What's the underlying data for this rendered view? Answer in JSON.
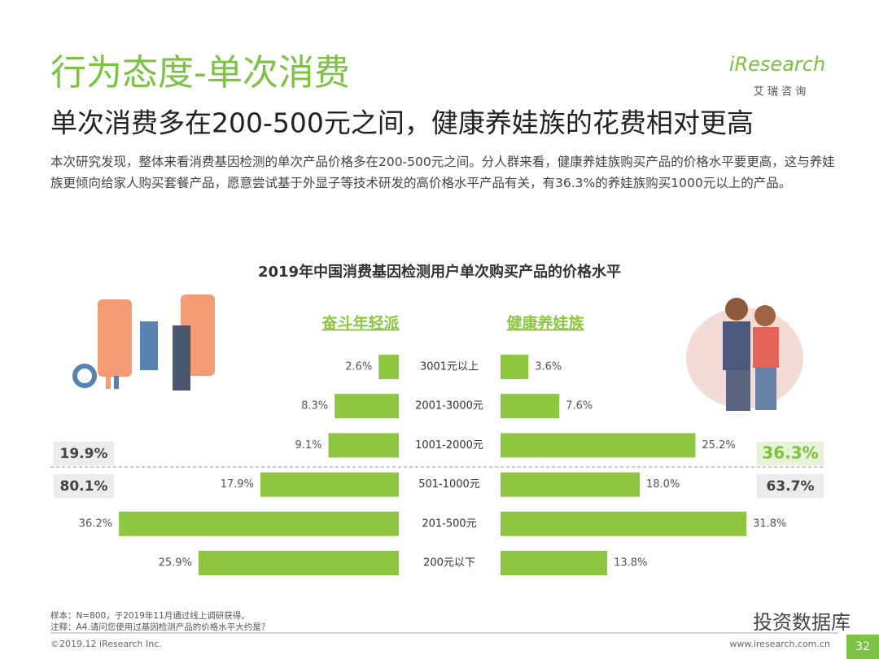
{
  "header": {
    "title": "行为态度-单次消费",
    "subtitle": "单次消费多在200-500元之间，健康养娃族的花费相对更高",
    "paragraph": "本次研究发现，整体来看消费基因检测的单次产品价格多在200-500元之间。分人群来看，健康养娃族购买产品的价格水平要更高，这与养娃族更倾向给家人购买套餐产品，愿意尝试基于外显子等技术研发的高价格水平产品有关，有36.3%的养娃族购买1000元以上的产品。"
  },
  "logo": {
    "name": "iResearch",
    "cn": "艾 瑞 咨 询"
  },
  "chart_data": {
    "type": "butterfly",
    "title": "2019年中国消费基因检测用户单次购买产品的价格水平",
    "categories": [
      "3001元以上",
      "2001-3000元",
      "1001-2000元",
      "501-1000元",
      "201-500元",
      "200元以下"
    ],
    "series": [
      {
        "name": "奋斗年轻派",
        "color": "#8dc63f",
        "values": [
          2.6,
          8.3,
          9.1,
          17.9,
          36.2,
          25.9
        ],
        "value_labels": [
          "2.6%",
          "8.3%",
          "9.1%",
          "17.9%",
          "36.2%",
          "25.9%"
        ],
        "totals": {
          "values": [
            19.9,
            80.1
          ],
          "value_labels": [
            "19.9%",
            "80.1%"
          ]
        }
      },
      {
        "name": "健康养娃族",
        "color": "#8dc63f",
        "values": [
          3.6,
          7.6,
          25.2,
          18,
          31.8,
          13.8
        ],
        "value_labels": [
          "3.6%",
          "7.6%",
          "25.2%",
          "18.0%",
          "31.8%",
          "13.8%"
        ],
        "totals": {
          "values": [
            36.3,
            63.7
          ],
          "value_labels": [
            "36.3%",
            "63.7%"
          ]
        }
      }
    ]
  },
  "footer": {
    "sample": "样本：N=800，于2019年11月通过线上调研获得。",
    "note": "注释：A4.请问您使用过基因检测产品的价格水平大约是？",
    "copyright": "©2019.12 iResearch Inc.",
    "url": "www.iresearch.com.cn",
    "page": "32",
    "watermark": "投资数据库"
  }
}
